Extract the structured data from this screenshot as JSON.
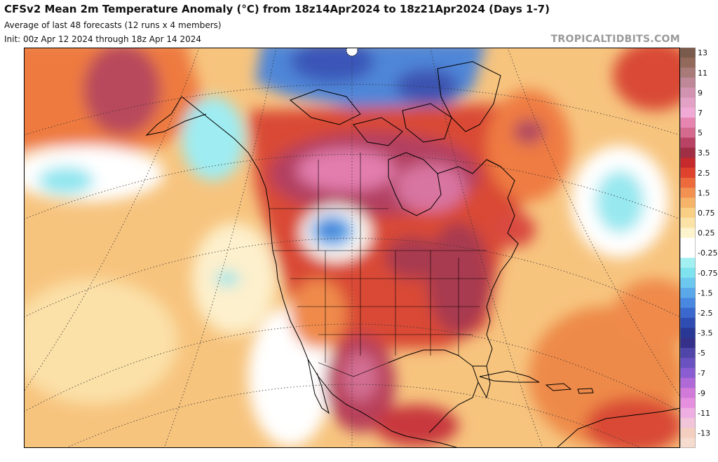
{
  "header": {
    "title": "CFSv2 Mean 2m Temperature Anomaly (°C) from 18z14Apr2024 to 18z21Apr2024 (Days 1-7)",
    "subtitle_members": "Average of last 48 forecasts (12 runs x 4 members)",
    "subtitle_init": "Init: 00z Apr 12 2024 through 18z Apr 14 2024",
    "credit": "TROPICALTIDBITS.COM"
  },
  "legend": {
    "levels": [
      {
        "label": "13",
        "color": "#7a5a4a"
      },
      {
        "label": "",
        "color": "#93695c"
      },
      {
        "label": "11",
        "color": "#a87a78"
      },
      {
        "label": "",
        "color": "#bf8898"
      },
      {
        "label": "9",
        "color": "#d193b0"
      },
      {
        "label": "",
        "color": "#e3a1c6"
      },
      {
        "label": "7",
        "color": "#f1aad6"
      },
      {
        "label": "",
        "color": "#e685b0"
      },
      {
        "label": "5",
        "color": "#d46a8e"
      },
      {
        "label": "",
        "color": "#b84364"
      },
      {
        "label": "3.5",
        "color": "#a02e44"
      },
      {
        "label": "",
        "color": "#c62a2c"
      },
      {
        "label": "2.5",
        "color": "#df432e"
      },
      {
        "label": "",
        "color": "#ec6a3c"
      },
      {
        "label": "1.5",
        "color": "#f29152"
      },
      {
        "label": "",
        "color": "#f6b46a"
      },
      {
        "label": "0.75",
        "color": "#f9cf86"
      },
      {
        "label": "",
        "color": "#fbe3a8"
      },
      {
        "label": "0.25",
        "color": "#fdf3cc"
      },
      {
        "label": "",
        "color": "#ffffff"
      },
      {
        "label": "-0.25",
        "color": "#ffffff"
      },
      {
        "label": "",
        "color": "#a3f0f2"
      },
      {
        "label": "-0.75",
        "color": "#7ee2ef"
      },
      {
        "label": "",
        "color": "#6cc8ef"
      },
      {
        "label": "-1.5",
        "color": "#5aa8ea"
      },
      {
        "label": "",
        "color": "#4888e0"
      },
      {
        "label": "-2.5",
        "color": "#3a68cc"
      },
      {
        "label": "",
        "color": "#2f4cb2"
      },
      {
        "label": "-3.5",
        "color": "#283894"
      },
      {
        "label": "",
        "color": "#35308a"
      },
      {
        "label": "-5",
        "color": "#5045a8"
      },
      {
        "label": "",
        "color": "#6a52c0"
      },
      {
        "label": "-7",
        "color": "#8a5ed2"
      },
      {
        "label": "",
        "color": "#b06ad8"
      },
      {
        "label": "-9",
        "color": "#d27ada"
      },
      {
        "label": "",
        "color": "#e58fde"
      },
      {
        "label": "-11",
        "color": "#eeaee2"
      },
      {
        "label": "",
        "color": "#f1c4d8"
      },
      {
        "label": "-13",
        "color": "#f4cfc0"
      },
      {
        "label": "",
        "color": "#f6dccf"
      }
    ]
  },
  "map": {
    "ocean_color": "#f7c47e",
    "land_outline_color": "#000000",
    "graticule_color": "#333333"
  }
}
